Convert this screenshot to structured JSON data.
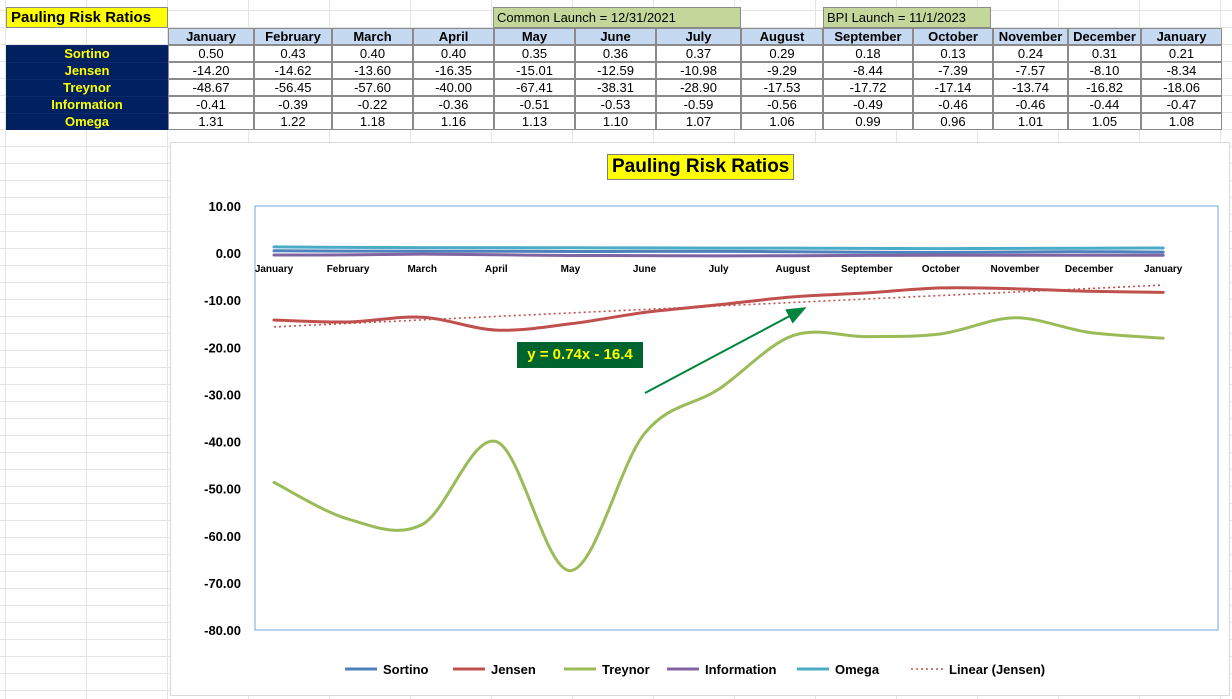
{
  "sheet": {
    "title": "Pauling Risk Ratios",
    "launch_notes": [
      "Common Launch = 12/31/2021",
      "BPI Launch = 11/1/2023"
    ]
  },
  "chart_data": {
    "type": "line",
    "title": "Pauling Risk Ratios",
    "categories": [
      "January",
      "February",
      "March",
      "April",
      "May",
      "June",
      "July",
      "August",
      "September",
      "October",
      "November",
      "December",
      "January"
    ],
    "series": [
      {
        "name": "Sortino",
        "color": "#4f81bd",
        "values": [
          0.5,
          0.43,
          0.4,
          0.4,
          0.35,
          0.36,
          0.37,
          0.29,
          0.18,
          0.13,
          0.24,
          0.31,
          0.21
        ],
        "labels": [
          "0.50",
          "0.43",
          "0.40",
          "0.40",
          "0.35",
          "0.36",
          "0.37",
          "0.29",
          "0.18",
          "0.13",
          "0.24",
          "0.31",
          "0.21"
        ]
      },
      {
        "name": "Jensen",
        "color": "#c0504d",
        "values": [
          -14.2,
          -14.62,
          -13.6,
          -16.35,
          -15.01,
          -12.59,
          -10.98,
          -9.29,
          -8.44,
          -7.39,
          -7.57,
          -8.1,
          -8.34
        ],
        "labels": [
          "-14.20",
          "-14.62",
          "-13.60",
          "-16.35",
          "-15.01",
          "-12.59",
          "-10.98",
          "-9.29",
          "-8.44",
          "-7.39",
          "-7.57",
          "-8.10",
          "-8.34"
        ]
      },
      {
        "name": "Treynor",
        "color": "#9bbb59",
        "values": [
          -48.67,
          -56.45,
          -57.6,
          -40.0,
          -67.41,
          -38.31,
          -28.9,
          -17.53,
          -17.72,
          -17.14,
          -13.74,
          -16.82,
          -18.06
        ],
        "labels": [
          "-48.67",
          "-56.45",
          "-57.60",
          "-40.00",
          "-67.41",
          "-38.31",
          "-28.90",
          "-17.53",
          "-17.72",
          "-17.14",
          "-13.74",
          "-16.82",
          "-18.06"
        ]
      },
      {
        "name": "Information",
        "color": "#8064a2",
        "values": [
          -0.41,
          -0.39,
          -0.22,
          -0.36,
          -0.51,
          -0.53,
          -0.59,
          -0.56,
          -0.49,
          -0.46,
          -0.46,
          -0.44,
          -0.47
        ],
        "labels": [
          "-0.41",
          "-0.39",
          "-0.22",
          "-0.36",
          "-0.51",
          "-0.53",
          "-0.59",
          "-0.56",
          "-0.49",
          "-0.46",
          "-0.46",
          "-0.44",
          "-0.47"
        ]
      },
      {
        "name": "Omega",
        "color": "#4bacc6",
        "values": [
          1.31,
          1.22,
          1.18,
          1.16,
          1.13,
          1.1,
          1.07,
          1.06,
          0.99,
          0.96,
          1.01,
          1.05,
          1.08
        ],
        "labels": [
          "1.31",
          "1.22",
          "1.18",
          "1.16",
          "1.13",
          "1.10",
          "1.07",
          "1.06",
          "0.99",
          "0.96",
          "1.01",
          "1.05",
          "1.08"
        ]
      }
    ],
    "trendline": {
      "name": "Linear (Jensen)",
      "series": "Jensen",
      "slope": 0.74,
      "intercept": -16.4,
      "label": "y = 0.74x - 16.4",
      "color": "#c0504d"
    },
    "ylim": [
      -80,
      10
    ],
    "yticks": [
      "10.00",
      "0.00",
      "-10.00",
      "-20.00",
      "-30.00",
      "-40.00",
      "-50.00",
      "-60.00",
      "-70.00",
      "-80.00"
    ],
    "legend": "bottom",
    "grid": false,
    "annotation_arrow_color": "#00843d"
  }
}
